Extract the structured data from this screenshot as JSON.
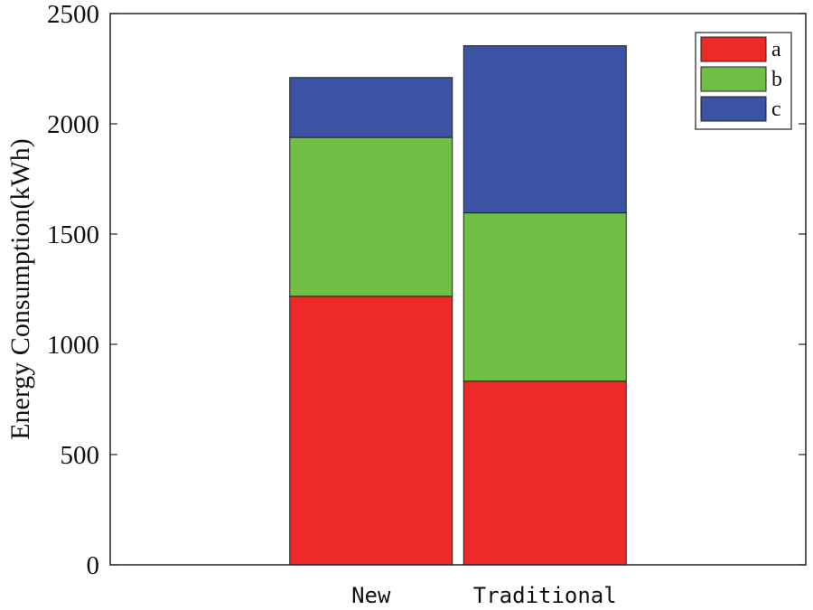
{
  "chart_data": {
    "type": "bar",
    "stacked": true,
    "categories": [
      "New",
      "Traditional"
    ],
    "series": [
      {
        "name": "a",
        "color": "#ed2a28",
        "values": [
          1218,
          833
        ]
      },
      {
        "name": "b",
        "color": "#6fbf45",
        "values": [
          720,
          763
        ]
      },
      {
        "name": "c",
        "color": "#3c53a4",
        "values": [
          272,
          758
        ]
      }
    ],
    "xlabel": "",
    "ylabel": "Energy Consumption(kWh)",
    "ylim": [
      0,
      2500
    ],
    "yticks": [
      0,
      500,
      1000,
      1500,
      2000,
      2500
    ],
    "x_slots": 4,
    "grid": false,
    "legend_position": "top-right"
  }
}
